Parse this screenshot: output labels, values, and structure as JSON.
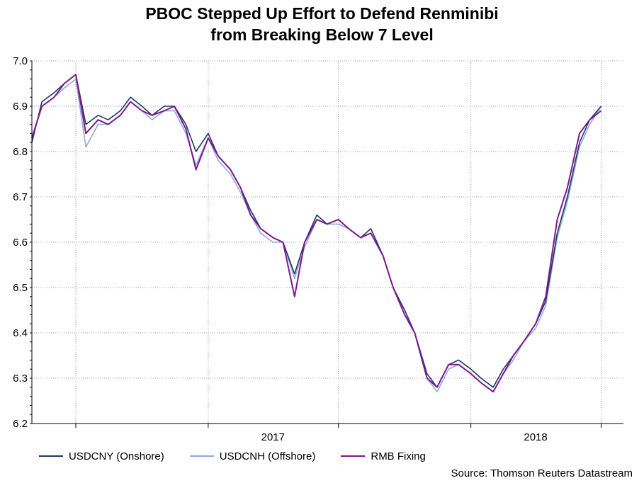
{
  "chart_data": {
    "type": "line",
    "title_lines": [
      "PBOC Stepped Up Effort to Defend Renminibi",
      "from Breaking Below 7 Level"
    ],
    "xlabel": "",
    "ylabel": "",
    "x_ticks": [
      "2017",
      "2018"
    ],
    "ylim": [
      6.2,
      7.0
    ],
    "y_ticks": [
      "6.2",
      "6.3",
      "6.4",
      "6.5",
      "6.6",
      "6.7",
      "6.8",
      "6.9",
      "7.0"
    ],
    "xlim": [
      "2016-05",
      "2018-08"
    ],
    "grid": true,
    "legend_position": "bottom",
    "x": [
      "2016-05-01",
      "2016-05-15",
      "2016-06-01",
      "2016-06-15",
      "2016-07-01",
      "2016-07-15",
      "2016-08-01",
      "2016-08-15",
      "2016-09-01",
      "2016-09-15",
      "2016-10-01",
      "2016-10-15",
      "2016-11-01",
      "2016-11-15",
      "2016-12-01",
      "2016-12-15",
      "2017-01-01",
      "2017-01-15",
      "2017-02-01",
      "2017-02-15",
      "2017-03-01",
      "2017-03-15",
      "2017-04-01",
      "2017-04-15",
      "2017-05-01",
      "2017-05-15",
      "2017-06-01",
      "2017-06-15",
      "2017-07-01",
      "2017-07-15",
      "2017-08-01",
      "2017-08-15",
      "2017-09-01",
      "2017-09-15",
      "2017-10-01",
      "2017-10-15",
      "2017-11-01",
      "2017-11-15",
      "2017-12-01",
      "2017-12-15",
      "2018-01-01",
      "2018-01-15",
      "2018-02-01",
      "2018-02-15",
      "2018-03-01",
      "2018-03-15",
      "2018-04-01",
      "2018-04-15",
      "2018-05-01",
      "2018-05-15",
      "2018-06-01",
      "2018-06-15",
      "2018-07-01"
    ],
    "series": [
      {
        "name": "USDCNY (Onshore)",
        "color": "#1f3864",
        "values": [
          6.82,
          6.91,
          6.93,
          6.95,
          6.97,
          6.86,
          6.88,
          6.87,
          6.89,
          6.92,
          6.9,
          6.88,
          6.9,
          6.9,
          6.86,
          6.8,
          6.84,
          6.79,
          6.76,
          6.72,
          6.67,
          6.63,
          6.61,
          6.6,
          6.53,
          6.6,
          6.66,
          6.64,
          6.65,
          6.63,
          6.61,
          6.63,
          6.57,
          6.5,
          6.45,
          6.4,
          6.31,
          6.28,
          6.33,
          6.34,
          6.32,
          6.3,
          6.28,
          6.32,
          6.35,
          6.38,
          6.42,
          6.47,
          6.62,
          6.7,
          6.82,
          6.87,
          6.9
        ]
      },
      {
        "name": "USDCNH (Offshore)",
        "color": "#8ea9db",
        "values": [
          6.83,
          6.9,
          6.92,
          6.94,
          6.96,
          6.81,
          6.86,
          6.86,
          6.88,
          6.91,
          6.89,
          6.87,
          6.89,
          6.89,
          6.84,
          6.77,
          6.83,
          6.78,
          6.75,
          6.71,
          6.66,
          6.62,
          6.6,
          6.6,
          6.52,
          6.59,
          6.65,
          6.64,
          6.64,
          6.63,
          6.61,
          6.62,
          6.57,
          6.5,
          6.44,
          6.4,
          6.3,
          6.27,
          6.32,
          6.33,
          6.31,
          6.29,
          6.27,
          6.31,
          6.34,
          6.38,
          6.41,
          6.46,
          6.61,
          6.69,
          6.81,
          6.86,
          6.9
        ]
      },
      {
        "name": "RMB Fixing",
        "color": "#7b1a8c",
        "values": [
          6.83,
          6.9,
          6.92,
          6.95,
          6.97,
          6.84,
          6.87,
          6.86,
          6.88,
          6.91,
          6.89,
          6.88,
          6.89,
          6.9,
          6.85,
          6.76,
          6.83,
          6.79,
          6.76,
          6.72,
          6.66,
          6.63,
          6.61,
          6.6,
          6.48,
          6.6,
          6.65,
          6.64,
          6.65,
          6.63,
          6.61,
          6.62,
          6.57,
          6.5,
          6.44,
          6.4,
          6.3,
          6.28,
          6.33,
          6.33,
          6.31,
          6.29,
          6.27,
          6.31,
          6.35,
          6.38,
          6.42,
          6.48,
          6.65,
          6.72,
          6.84,
          6.87,
          6.89
        ]
      }
    ]
  },
  "legend": {
    "items": [
      "USDCNY (Onshore)",
      "USDCNH (Offshore)",
      "RMB Fixing"
    ]
  },
  "source": "Source: Thomson Reuters Datastream"
}
